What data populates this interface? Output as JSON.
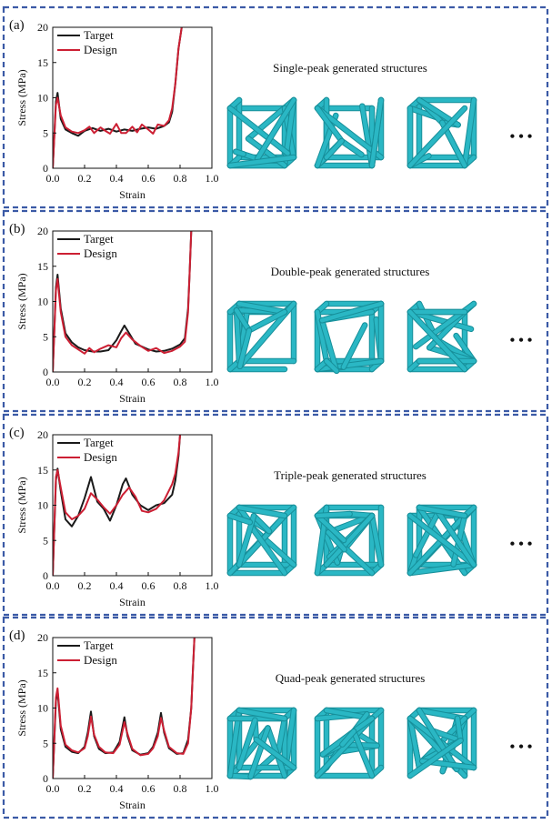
{
  "colors": {
    "border": "#3b5aa6",
    "target": "#1a1a1a",
    "design": "#cc1f33",
    "lattice": "#2ab7c4",
    "lattice_dark": "#178f9a"
  },
  "panels": [
    {
      "label": "(a)",
      "caption": "Single-peak generated structures",
      "ellipsis": "• • •",
      "structures": [
        "single-peak-structure-1",
        "single-peak-structure-2",
        "single-peak-structure-3"
      ]
    },
    {
      "label": "(b)",
      "caption": "Double-peak generated structures",
      "ellipsis": "• • •",
      "structures": [
        "double-peak-structure-1",
        "double-peak-structure-2",
        "double-peak-structure-3"
      ]
    },
    {
      "label": "(c)",
      "caption": "Triple-peak generated structures",
      "ellipsis": "• • •",
      "structures": [
        "triple-peak-structure-1",
        "triple-peak-structure-2",
        "triple-peak-structure-3"
      ]
    },
    {
      "label": "(d)",
      "caption": "Quad-peak generated structures",
      "ellipsis": "• • •",
      "structures": [
        "quad-peak-structure-1",
        "quad-peak-structure-2",
        "quad-peak-structure-3"
      ]
    }
  ],
  "chart_data": [
    {
      "type": "line",
      "xlabel": "Strain",
      "ylabel": "Stress (MPa)",
      "xlim": [
        0.0,
        1.0
      ],
      "ylim": [
        0,
        20
      ],
      "xticks": [
        "0.0",
        "0.2",
        "0.4",
        "0.6",
        "0.8",
        "1.0"
      ],
      "yticks": [
        "0",
        "5",
        "10",
        "15",
        "20"
      ],
      "legend": "top-left",
      "series": [
        {
          "name": "Target",
          "x": [
            0.0,
            0.02,
            0.03,
            0.05,
            0.08,
            0.12,
            0.16,
            0.2,
            0.25,
            0.3,
            0.35,
            0.4,
            0.45,
            0.5,
            0.55,
            0.6,
            0.65,
            0.7,
            0.73,
            0.75,
            0.77,
            0.79,
            0.81
          ],
          "y": [
            0,
            9.5,
            10.7,
            7.0,
            5.5,
            5.0,
            4.6,
            5.3,
            5.7,
            5.3,
            5.6,
            5.2,
            5.5,
            5.3,
            5.6,
            5.8,
            5.6,
            6.0,
            6.5,
            8.0,
            12.0,
            17.0,
            20.0
          ]
        },
        {
          "name": "Design",
          "x": [
            0.0,
            0.02,
            0.03,
            0.05,
            0.08,
            0.12,
            0.16,
            0.2,
            0.23,
            0.26,
            0.3,
            0.33,
            0.36,
            0.4,
            0.43,
            0.46,
            0.5,
            0.53,
            0.56,
            0.6,
            0.63,
            0.66,
            0.7,
            0.73,
            0.75,
            0.77,
            0.79,
            0.81
          ],
          "y": [
            0,
            9.0,
            10.0,
            7.5,
            5.8,
            5.2,
            5.0,
            5.4,
            5.9,
            5.0,
            5.8,
            5.3,
            4.9,
            6.3,
            5.0,
            5.0,
            5.9,
            5.1,
            6.2,
            5.5,
            4.9,
            6.2,
            6.0,
            6.8,
            8.5,
            12.0,
            17.0,
            20.0
          ]
        }
      ]
    },
    {
      "type": "line",
      "xlabel": "Strain",
      "ylabel": "Stress (MPa)",
      "xlim": [
        0.0,
        1.0
      ],
      "ylim": [
        0,
        20
      ],
      "xticks": [
        "0.0",
        "0.2",
        "0.4",
        "0.6",
        "0.8",
        "1.0"
      ],
      "yticks": [
        "0",
        "5",
        "10",
        "15",
        "20"
      ],
      "legend": "top-left",
      "series": [
        {
          "name": "Target",
          "x": [
            0.0,
            0.02,
            0.03,
            0.05,
            0.08,
            0.12,
            0.16,
            0.2,
            0.25,
            0.3,
            0.35,
            0.4,
            0.43,
            0.45,
            0.48,
            0.52,
            0.56,
            0.6,
            0.65,
            0.7,
            0.75,
            0.8,
            0.83,
            0.85,
            0.86,
            0.87
          ],
          "y": [
            0,
            12.0,
            13.8,
            9.0,
            5.5,
            4.2,
            3.5,
            3.1,
            2.9,
            2.9,
            3.1,
            4.5,
            5.8,
            6.6,
            5.5,
            4.0,
            3.6,
            3.2,
            2.9,
            3.0,
            3.3,
            3.9,
            4.8,
            9.0,
            14.0,
            20.0
          ]
        },
        {
          "name": "Design",
          "x": [
            0.0,
            0.02,
            0.03,
            0.05,
            0.08,
            0.12,
            0.16,
            0.2,
            0.23,
            0.26,
            0.3,
            0.35,
            0.4,
            0.43,
            0.46,
            0.5,
            0.55,
            0.6,
            0.65,
            0.7,
            0.75,
            0.8,
            0.83,
            0.85,
            0.86,
            0.87
          ],
          "y": [
            0,
            11.5,
            13.2,
            8.5,
            5.0,
            3.8,
            3.2,
            2.6,
            3.4,
            2.8,
            3.3,
            3.8,
            3.5,
            4.8,
            5.6,
            4.6,
            3.7,
            3.0,
            3.4,
            2.7,
            3.0,
            3.6,
            4.3,
            8.5,
            14.0,
            20.0
          ]
        }
      ]
    },
    {
      "type": "line",
      "xlabel": "Strain",
      "ylabel": "Stress (MPa)",
      "xlim": [
        0.0,
        1.0
      ],
      "ylim": [
        0,
        20
      ],
      "xticks": [
        "0.0",
        "0.2",
        "0.4",
        "0.6",
        "0.8",
        "1.0"
      ],
      "yticks": [
        "0",
        "5",
        "10",
        "15",
        "20"
      ],
      "legend": "top-left",
      "series": [
        {
          "name": "Target",
          "x": [
            0.0,
            0.02,
            0.03,
            0.05,
            0.08,
            0.12,
            0.16,
            0.2,
            0.24,
            0.28,
            0.32,
            0.36,
            0.4,
            0.44,
            0.46,
            0.5,
            0.55,
            0.6,
            0.65,
            0.7,
            0.75,
            0.77,
            0.79,
            0.8
          ],
          "y": [
            0,
            13.5,
            15.2,
            12.0,
            8.0,
            7.0,
            8.5,
            11.0,
            14.0,
            10.5,
            9.5,
            7.8,
            10.0,
            13.0,
            13.8,
            11.5,
            10.0,
            9.3,
            10.0,
            10.3,
            11.5,
            13.5,
            17.0,
            20.0
          ]
        },
        {
          "name": "Design",
          "x": [
            0.0,
            0.02,
            0.03,
            0.05,
            0.08,
            0.12,
            0.16,
            0.2,
            0.24,
            0.28,
            0.32,
            0.36,
            0.4,
            0.44,
            0.48,
            0.52,
            0.56,
            0.6,
            0.65,
            0.7,
            0.75,
            0.77,
            0.79,
            0.8
          ],
          "y": [
            0,
            14.0,
            15.0,
            12.5,
            9.0,
            8.0,
            8.5,
            9.5,
            11.7,
            10.8,
            9.7,
            8.8,
            10.0,
            11.5,
            12.5,
            11.2,
            9.2,
            9.0,
            9.5,
            10.7,
            13.0,
            14.5,
            17.5,
            20.0
          ]
        }
      ]
    },
    {
      "type": "line",
      "xlabel": "Strain",
      "ylabel": "Stress (MPa)",
      "xlim": [
        0.0,
        1.0
      ],
      "ylim": [
        0,
        20
      ],
      "xticks": [
        "0.0",
        "0.2",
        "0.4",
        "0.6",
        "0.8",
        "1.0"
      ],
      "yticks": [
        "0",
        "5",
        "10",
        "15",
        "20"
      ],
      "legend": "top-left",
      "series": [
        {
          "name": "Target",
          "x": [
            0.0,
            0.02,
            0.03,
            0.05,
            0.08,
            0.12,
            0.16,
            0.2,
            0.22,
            0.24,
            0.26,
            0.29,
            0.33,
            0.38,
            0.42,
            0.45,
            0.47,
            0.5,
            0.55,
            0.6,
            0.63,
            0.66,
            0.68,
            0.7,
            0.73,
            0.78,
            0.82,
            0.85,
            0.87,
            0.88,
            0.89
          ],
          "y": [
            0,
            11.0,
            12.5,
            7.0,
            4.5,
            3.8,
            3.6,
            4.5,
            6.5,
            9.5,
            6.0,
            4.2,
            3.6,
            3.7,
            5.2,
            8.7,
            6.0,
            4.0,
            3.4,
            3.6,
            4.5,
            6.5,
            9.3,
            6.5,
            4.3,
            3.5,
            3.6,
            5.5,
            10.0,
            15.0,
            20.0
          ]
        },
        {
          "name": "Design",
          "x": [
            0.0,
            0.02,
            0.03,
            0.05,
            0.08,
            0.12,
            0.16,
            0.2,
            0.22,
            0.24,
            0.26,
            0.29,
            0.33,
            0.38,
            0.42,
            0.45,
            0.47,
            0.5,
            0.55,
            0.6,
            0.63,
            0.66,
            0.68,
            0.7,
            0.73,
            0.78,
            0.82,
            0.85,
            0.87,
            0.88,
            0.89
          ],
          "y": [
            0,
            11.5,
            12.8,
            7.5,
            4.8,
            4.0,
            3.7,
            4.3,
            6.0,
            8.8,
            6.2,
            4.5,
            3.7,
            3.6,
            4.8,
            8.0,
            6.3,
            4.2,
            3.3,
            3.5,
            4.3,
            6.0,
            8.6,
            6.8,
            4.5,
            3.6,
            3.5,
            5.0,
            10.0,
            15.0,
            20.0
          ]
        }
      ]
    }
  ]
}
